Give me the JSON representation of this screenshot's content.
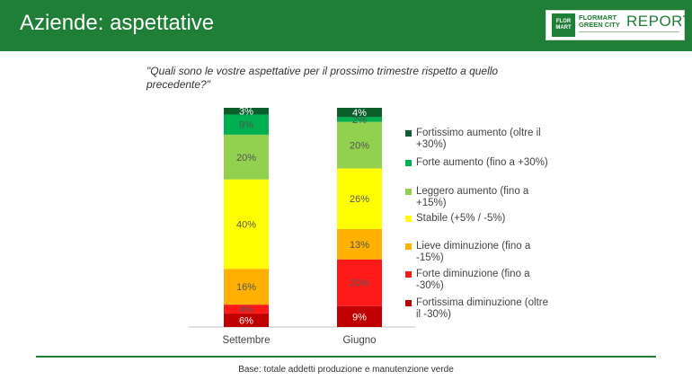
{
  "header": {
    "title": "Aziende: aspettative",
    "logo": {
      "mark_text": "FLOR MART",
      "line1": "FLORMART",
      "line2": "GREEN CITY",
      "report": "REPORT"
    }
  },
  "question": "\"Quali sono le vostre aspettative per il prossimo trimestre rispetto a quello precedente?\"",
  "footer": {
    "note": "Base: totale addetti produzione e manutenzione verde"
  },
  "colors": {
    "header_bg": "#1f7f37"
  },
  "chart_data": {
    "type": "bar",
    "stacked": true,
    "percent": true,
    "categories": [
      "Settembre",
      "Giugno"
    ],
    "series": [
      {
        "name": "Fortissima diminuzione (oltre il -30%)",
        "color": "#c00000",
        "values": [
          6,
          9
        ],
        "labels": [
          "6%",
          "9%"
        ]
      },
      {
        "name": "Forte diminuzione (fino a -30%)",
        "color": "#ff1a1a",
        "values": [
          4,
          20
        ],
        "labels": [
          "4%",
          "20%"
        ]
      },
      {
        "name": "Lieve diminuzione (fino a -15%)",
        "color": "#ffb000",
        "values": [
          16,
          13
        ],
        "labels": [
          "16%",
          "13%"
        ]
      },
      {
        "name": "Stabile (+5% / -5%)",
        "color": "#ffff00",
        "values": [
          40,
          26
        ],
        "labels": [
          "40%",
          "26%"
        ]
      },
      {
        "name": "Leggero aumento (fino a +15%)",
        "color": "#92d050",
        "values": [
          20,
          20
        ],
        "labels": [
          "20%",
          "20%"
        ]
      },
      {
        "name": "Forte aumento (fino a +30%)",
        "color": "#00b050",
        "values": [
          9,
          2
        ],
        "labels": [
          "9%",
          "2%"
        ]
      },
      {
        "name": "Fortissimo aumento (oltre il +30%)",
        "color": "#0b5e2b",
        "values": [
          3,
          4
        ],
        "labels": [
          "3%",
          "4%"
        ]
      }
    ],
    "legend_order": [
      6,
      5,
      4,
      3,
      2,
      1,
      0
    ],
    "legend_position": "right",
    "grid": false
  }
}
